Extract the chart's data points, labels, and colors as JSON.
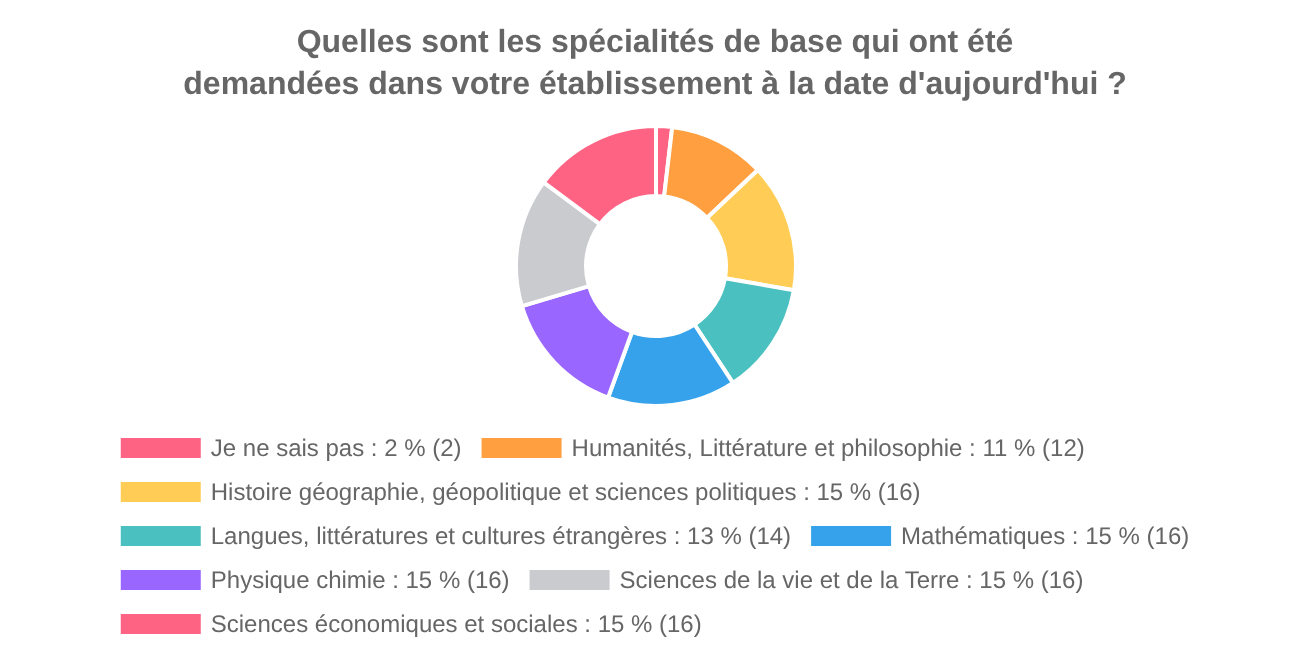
{
  "chart_data": {
    "type": "donut",
    "title": "Quelles sont les spécialités de base qui ont été\ndemandées dans votre établissement à la date d'aujourd'hui ?",
    "categories": [
      "Je ne sais pas : 2 % (2)",
      "Humanités, Littérature et philosophie : 11 % (12)",
      "Histoire géographie, géopolitique et sciences politiques : 15 % (16)",
      "Langues, littératures et cultures étrangères : 13 % (14)",
      "Mathématiques : 15 % (16)",
      "Physique chimie : 15 % (16)",
      "Sciences de la vie et de la Terre : 15 % (16)",
      "Sciences économiques et sociales : 15 % (16)"
    ],
    "values": [
      2,
      12,
      16,
      14,
      16,
      16,
      16,
      16
    ],
    "colors": [
      "#ff6384",
      "#ff9f40",
      "#ffcd56",
      "#4bc0c0",
      "#36a2eb",
      "#9966ff",
      "#c9cbcf",
      "#ff6384"
    ],
    "legend": "bottom"
  }
}
